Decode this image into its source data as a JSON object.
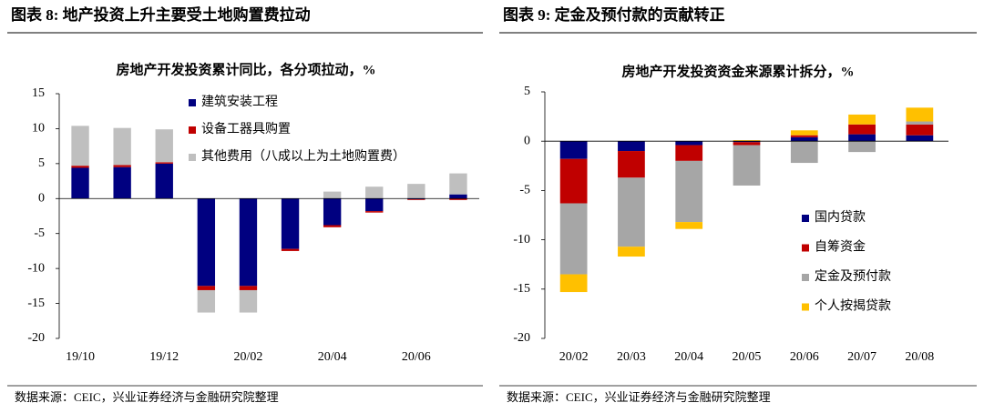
{
  "chart_data": [
    {
      "type": "bar",
      "stacked": true,
      "figure_title": "图表 8:  地产投资上升主要受土地购置费拉动",
      "title": "房地产开发投资累计同比，各分项拉动，%",
      "source": "数据来源：CEIC，兴业证券经济与金融研究院整理",
      "categories": [
        "19/10",
        null,
        "19/12",
        null,
        "20/02",
        null,
        "20/04",
        null,
        "20/06",
        null
      ],
      "series": [
        {
          "name": "建筑安装工程",
          "color": "#000080",
          "values": [
            4.4,
            4.5,
            5.0,
            -12.5,
            -12.5,
            -7.2,
            -3.8,
            -1.8,
            -0.1,
            0.6
          ]
        },
        {
          "name": "设备工器具购置",
          "color": "#c00000",
          "values": [
            0.3,
            0.3,
            0.2,
            -0.6,
            -0.6,
            -0.3,
            -0.3,
            -0.2,
            -0.1,
            -0.2
          ]
        },
        {
          "name": "其他费用（八成以上为土地购置费）",
          "color": "#bfbfbf",
          "values": [
            5.7,
            5.3,
            4.7,
            -3.2,
            -3.2,
            0,
            1.0,
            1.7,
            2.1,
            3.0
          ]
        }
      ],
      "ylim": [
        -20,
        15
      ],
      "yticks": [
        15,
        10,
        5,
        0,
        -5,
        -10,
        -15,
        -20
      ],
      "legend": "upper left"
    },
    {
      "type": "bar",
      "stacked": true,
      "figure_title": "图表 9:  定金及预付款的贡献转正",
      "title": "房地产开发投资资金来源累计拆分，%",
      "source": "数据来源：CEIC，兴业证券经济与金融研究院整理",
      "categories": [
        "20/02",
        "20/03",
        "20/04",
        "20/05",
        "20/06",
        "20/07",
        "20/08"
      ],
      "series": [
        {
          "name": "国内贷款",
          "color": "#000080",
          "values": [
            -1.8,
            -1.0,
            -0.4,
            -0.1,
            0.4,
            0.7,
            0.6
          ]
        },
        {
          "name": "自筹资金",
          "color": "#c00000",
          "values": [
            -4.5,
            -2.7,
            -1.6,
            -0.3,
            0.2,
            1.0,
            1.1
          ]
        },
        {
          "name": "定金及预付款",
          "color": "#a6a6a6",
          "values": [
            -7.2,
            -7.0,
            -6.2,
            -4.1,
            -2.2,
            -1.1,
            0.3
          ]
        },
        {
          "name": "个人按揭贷款",
          "color": "#ffc000",
          "values": [
            -1.8,
            -1.0,
            -0.7,
            0.1,
            0.5,
            1.0,
            1.4
          ]
        }
      ],
      "ylim": [
        -20,
        5
      ],
      "yticks": [
        5,
        0,
        -5,
        -10,
        -15,
        -20
      ],
      "legend": "lower right"
    }
  ]
}
